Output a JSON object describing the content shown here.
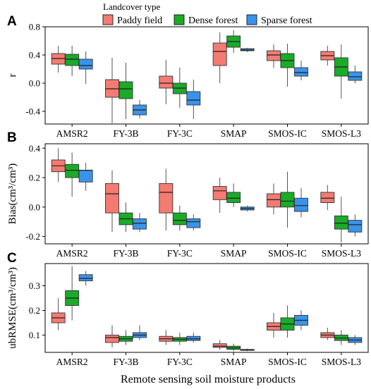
{
  "legend": {
    "title": "Landcover type",
    "items": [
      {
        "label": "Paddy field",
        "color": "#f47b72"
      },
      {
        "label": "Dense forest",
        "color": "#1aab29"
      },
      {
        "label": "Sparse forest",
        "color": "#3a93ea"
      }
    ]
  },
  "x_axis_label": "Remote sensing soil moisture products",
  "chart_data": [
    {
      "type": "box",
      "panel": "A",
      "ylabel": "r",
      "ylim": [
        -0.58,
        0.8
      ],
      "yticks": [
        -0.4,
        0.0,
        0.4,
        0.8
      ],
      "ytick_labels": [
        "-0.4",
        "0.0",
        "0.4",
        "0.8"
      ],
      "categories": [
        "AMSR2",
        "FY-3B",
        "FY-3C",
        "SMAP",
        "SMOS-IC",
        "SMOS-L3"
      ],
      "series": [
        {
          "name": "Paddy field",
          "boxes": [
            {
              "whislo": 0.15,
              "q1": 0.27,
              "med": 0.35,
              "q3": 0.42,
              "whishi": 0.53
            },
            {
              "whislo": -0.57,
              "q1": -0.2,
              "med": -0.08,
              "q3": 0.05,
              "whishi": 0.36
            },
            {
              "whislo": -0.3,
              "q1": -0.07,
              "med": 0.0,
              "q3": 0.1,
              "whishi": 0.33
            },
            {
              "whislo": 0.0,
              "q1": 0.25,
              "med": 0.45,
              "q3": 0.57,
              "whishi": 0.72
            },
            {
              "whislo": 0.22,
              "q1": 0.32,
              "med": 0.4,
              "q3": 0.46,
              "whishi": 0.55
            },
            {
              "whislo": 0.25,
              "q1": 0.33,
              "med": 0.39,
              "q3": 0.45,
              "whishi": 0.53
            }
          ]
        },
        {
          "name": "Dense forest",
          "boxes": [
            {
              "whislo": 0.1,
              "q1": 0.25,
              "med": 0.34,
              "q3": 0.41,
              "whishi": 0.53
            },
            {
              "whislo": -0.51,
              "q1": -0.22,
              "med": -0.08,
              "q3": 0.02,
              "whishi": 0.29
            },
            {
              "whislo": -0.35,
              "q1": -0.15,
              "med": -0.07,
              "q3": 0.0,
              "whishi": 0.22
            },
            {
              "whislo": 0.43,
              "q1": 0.51,
              "med": 0.59,
              "q3": 0.67,
              "whishi": 0.75
            },
            {
              "whislo": -0.05,
              "q1": 0.22,
              "med": 0.32,
              "q3": 0.42,
              "whishi": 0.56
            },
            {
              "whislo": -0.22,
              "q1": 0.1,
              "med": 0.23,
              "q3": 0.36,
              "whishi": 0.55
            }
          ]
        },
        {
          "name": "Sparse forest",
          "boxes": [
            {
              "whislo": -0.01,
              "q1": 0.2,
              "med": 0.25,
              "q3": 0.34,
              "whishi": 0.45
            },
            {
              "whislo": -0.5,
              "q1": -0.45,
              "med": -0.38,
              "q3": -0.31,
              "whishi": -0.24
            },
            {
              "whislo": -0.51,
              "q1": -0.31,
              "med": -0.24,
              "q3": -0.12,
              "whishi": 0.05
            },
            {
              "whislo": 0.44,
              "q1": 0.46,
              "med": 0.47,
              "q3": 0.49,
              "whishi": 0.5
            },
            {
              "whislo": 0.04,
              "q1": 0.1,
              "med": 0.15,
              "q3": 0.22,
              "whishi": 0.32
            },
            {
              "whislo": 0.0,
              "q1": 0.04,
              "med": 0.09,
              "q3": 0.16,
              "whishi": 0.25
            }
          ]
        }
      ]
    },
    {
      "type": "box",
      "panel": "B",
      "ylabel": "Bias(cm³/cm³)",
      "ylim": [
        -0.25,
        0.43
      ],
      "yticks": [
        -0.2,
        0.0,
        0.2,
        0.4
      ],
      "ytick_labels": [
        "-0.2",
        "0.0",
        "0.2",
        "0.4"
      ],
      "categories": [
        "AMSR2",
        "FY-3B",
        "FY-3C",
        "SMAP",
        "SMOS-IC",
        "SMOS-L3"
      ],
      "series": [
        {
          "name": "Paddy field",
          "boxes": [
            {
              "whislo": 0.17,
              "q1": 0.24,
              "med": 0.28,
              "q3": 0.32,
              "whishi": 0.4
            },
            {
              "whislo": -0.17,
              "q1": -0.04,
              "med": 0.09,
              "q3": 0.16,
              "whishi": 0.25
            },
            {
              "whislo": -0.16,
              "q1": -0.04,
              "med": 0.1,
              "q3": 0.16,
              "whishi": 0.26
            },
            {
              "whislo": -0.04,
              "q1": 0.05,
              "med": 0.11,
              "q3": 0.14,
              "whishi": 0.2
            },
            {
              "whislo": -0.05,
              "q1": 0.0,
              "med": 0.05,
              "q3": 0.09,
              "whishi": 0.16
            },
            {
              "whislo": -0.02,
              "q1": 0.03,
              "med": 0.06,
              "q3": 0.1,
              "whishi": 0.15
            }
          ]
        },
        {
          "name": "Dense forest",
          "boxes": [
            {
              "whislo": 0.07,
              "q1": 0.2,
              "med": 0.25,
              "q3": 0.29,
              "whishi": 0.37
            },
            {
              "whislo": -0.17,
              "q1": -0.12,
              "med": -0.08,
              "q3": -0.04,
              "whishi": 0.03
            },
            {
              "whislo": -0.16,
              "q1": -0.12,
              "med": -0.09,
              "q3": -0.04,
              "whishi": 0.01
            },
            {
              "whislo": 0.0,
              "q1": 0.03,
              "med": 0.06,
              "q3": 0.1,
              "whishi": 0.16
            },
            {
              "whislo": -0.14,
              "q1": 0.0,
              "med": 0.04,
              "q3": 0.1,
              "whishi": 0.24
            },
            {
              "whislo": -0.24,
              "q1": -0.15,
              "med": -0.11,
              "q3": -0.06,
              "whishi": 0.07
            }
          ]
        },
        {
          "name": "Sparse forest",
          "boxes": [
            {
              "whislo": 0.11,
              "q1": 0.17,
              "med": 0.25,
              "q3": 0.25,
              "whishi": 0.3
            },
            {
              "whislo": -0.17,
              "q1": -0.15,
              "med": -0.11,
              "q3": -0.08,
              "whishi": -0.04
            },
            {
              "whislo": -0.16,
              "q1": -0.14,
              "med": -0.1,
              "q3": -0.08,
              "whishi": -0.05
            },
            {
              "whislo": -0.03,
              "q1": -0.02,
              "med": -0.01,
              "q3": 0.0,
              "whishi": 0.01
            },
            {
              "whislo": -0.07,
              "q1": -0.03,
              "med": 0.01,
              "q3": 0.06,
              "whishi": 0.13
            },
            {
              "whislo": -0.2,
              "q1": -0.17,
              "med": -0.12,
              "q3": -0.09,
              "whishi": -0.05
            }
          ]
        }
      ]
    },
    {
      "type": "box",
      "panel": "C",
      "ylabel": "ubRMSE(cm³/cm³)",
      "ylim": [
        0.03,
        0.39
      ],
      "yticks": [
        0.1,
        0.2,
        0.3
      ],
      "ytick_labels": [
        "0.1",
        "0.2",
        "0.3"
      ],
      "categories": [
        "AMSR2",
        "FY-3B",
        "FY-3C",
        "SMAP",
        "SMOS-IC",
        "SMOS-L3"
      ],
      "series": [
        {
          "name": "Paddy field",
          "boxes": [
            {
              "whislo": 0.12,
              "q1": 0.15,
              "med": 0.17,
              "q3": 0.19,
              "whishi": 0.25
            },
            {
              "whislo": 0.05,
              "q1": 0.07,
              "med": 0.09,
              "q3": 0.1,
              "whishi": 0.14
            },
            {
              "whislo": 0.06,
              "q1": 0.075,
              "med": 0.085,
              "q3": 0.095,
              "whishi": 0.12
            },
            {
              "whislo": 0.04,
              "q1": 0.05,
              "med": 0.055,
              "q3": 0.065,
              "whishi": 0.08
            },
            {
              "whislo": 0.09,
              "q1": 0.12,
              "med": 0.135,
              "q3": 0.15,
              "whishi": 0.19
            },
            {
              "whislo": 0.08,
              "q1": 0.09,
              "med": 0.1,
              "q3": 0.11,
              "whishi": 0.13
            }
          ]
        },
        {
          "name": "Dense forest",
          "boxes": [
            {
              "whislo": 0.16,
              "q1": 0.22,
              "med": 0.25,
              "q3": 0.28,
              "whishi": 0.38
            },
            {
              "whislo": 0.06,
              "q1": 0.075,
              "med": 0.085,
              "q3": 0.095,
              "whishi": 0.12
            },
            {
              "whislo": 0.06,
              "q1": 0.075,
              "med": 0.083,
              "q3": 0.09,
              "whishi": 0.11
            },
            {
              "whislo": 0.035,
              "q1": 0.042,
              "med": 0.048,
              "q3": 0.055,
              "whishi": 0.065
            },
            {
              "whislo": 0.09,
              "q1": 0.12,
              "med": 0.145,
              "q3": 0.17,
              "whishi": 0.22
            },
            {
              "whislo": 0.06,
              "q1": 0.078,
              "med": 0.088,
              "q3": 0.1,
              "whishi": 0.12
            }
          ]
        },
        {
          "name": "Sparse forest",
          "boxes": [
            {
              "whislo": 0.3,
              "q1": 0.32,
              "med": 0.33,
              "q3": 0.345,
              "whishi": 0.36
            },
            {
              "whislo": 0.08,
              "q1": 0.09,
              "med": 0.1,
              "q3": 0.11,
              "whishi": 0.14
            },
            {
              "whislo": 0.07,
              "q1": 0.078,
              "med": 0.085,
              "q3": 0.095,
              "whishi": 0.11
            },
            {
              "whislo": 0.035,
              "q1": 0.038,
              "med": 0.04,
              "q3": 0.042,
              "whishi": 0.045
            },
            {
              "whislo": 0.12,
              "q1": 0.14,
              "med": 0.16,
              "q3": 0.18,
              "whishi": 0.2
            },
            {
              "whislo": 0.06,
              "q1": 0.07,
              "med": 0.08,
              "q3": 0.09,
              "whishi": 0.1
            }
          ]
        }
      ]
    }
  ]
}
